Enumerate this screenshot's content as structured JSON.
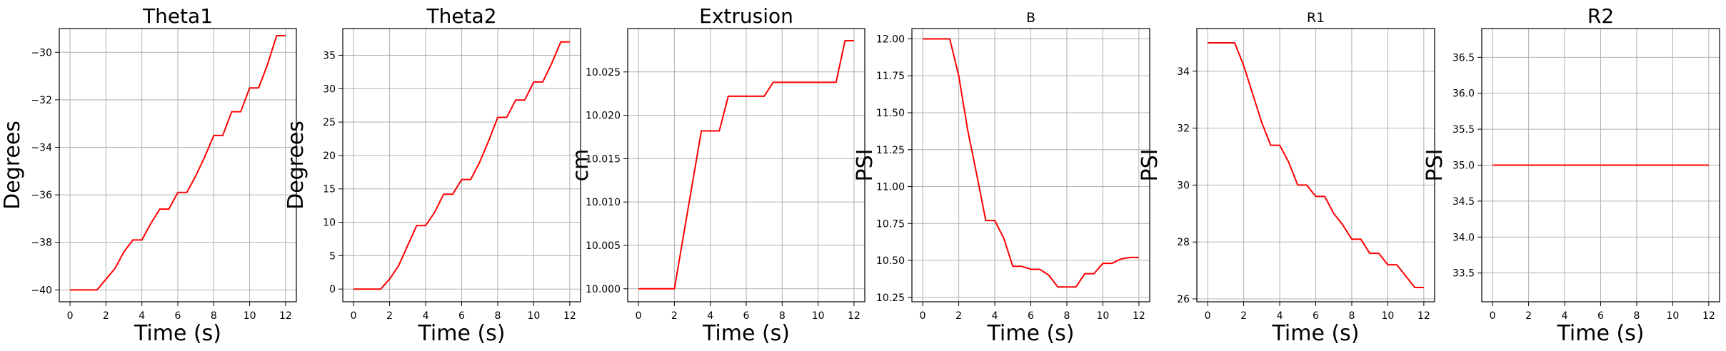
{
  "colors": {
    "series": "#ff0000",
    "grid": "#b0b0b0",
    "frame": "#000000",
    "background": "#ffffff"
  },
  "chart_data": [
    {
      "type": "line",
      "title": "Theta1",
      "title_style": "large",
      "xlabel": "Time (s)",
      "ylabel": "Degrees",
      "xlim": [
        -0.6,
        12.6
      ],
      "ylim": [
        -40.5,
        -29.0
      ],
      "xticks": [
        0,
        2,
        4,
        6,
        8,
        10,
        12
      ],
      "xtick_labels": [
        "0",
        "2",
        "4",
        "6",
        "8",
        "10",
        "12"
      ],
      "yticks": [
        -40,
        -38,
        -36,
        -34,
        -32,
        -30
      ],
      "ytick_labels": [
        "−40",
        "−38",
        "−36",
        "−34",
        "−32",
        "−30"
      ],
      "grid": true,
      "series": [
        {
          "color": "#ff0000",
          "x": [
            0,
            1.5,
            2.5,
            3.0,
            3.5,
            4.0,
            4.5,
            5.0,
            5.5,
            6.0,
            6.5,
            7.0,
            7.5,
            8.0,
            8.5,
            9.0,
            9.5,
            10.0,
            10.5,
            11.0,
            11.5,
            12.0
          ],
          "y": [
            -40,
            -40,
            -39.1,
            -38.4,
            -37.9,
            -37.9,
            -37.2,
            -36.6,
            -36.6,
            -35.9,
            -35.9,
            -35.2,
            -34.4,
            -33.5,
            -33.5,
            -32.5,
            -32.5,
            -31.5,
            -31.5,
            -30.5,
            -29.3,
            -29.3
          ]
        }
      ]
    },
    {
      "type": "line",
      "title": "Theta2",
      "title_style": "large",
      "xlabel": "Time (s)",
      "ylabel": "Degrees",
      "xlim": [
        -0.6,
        12.6
      ],
      "ylim": [
        -1.9,
        39.0
      ],
      "xticks": [
        0,
        2,
        4,
        6,
        8,
        10,
        12
      ],
      "xtick_labels": [
        "0",
        "2",
        "4",
        "6",
        "8",
        "10",
        "12"
      ],
      "yticks": [
        0,
        5,
        10,
        15,
        20,
        25,
        30,
        35
      ],
      "ytick_labels": [
        "0",
        "5",
        "10",
        "15",
        "20",
        "25",
        "30",
        "35"
      ],
      "grid": true,
      "series": [
        {
          "color": "#ff0000",
          "x": [
            0,
            1.5,
            2.0,
            2.5,
            3.0,
            3.5,
            4.0,
            4.5,
            5.0,
            5.5,
            6.0,
            6.5,
            7.0,
            7.5,
            8.0,
            8.5,
            9.0,
            9.5,
            10.0,
            10.5,
            11.0,
            11.5,
            12.0
          ],
          "y": [
            0,
            0,
            1.5,
            3.5,
            6.5,
            9.5,
            9.5,
            11.5,
            14.2,
            14.2,
            16.4,
            16.4,
            19.0,
            22.2,
            25.7,
            25.7,
            28.3,
            28.3,
            31.0,
            31.0,
            33.8,
            37.0,
            37.0
          ]
        }
      ]
    },
    {
      "type": "line",
      "title": "Extrusion",
      "title_style": "large",
      "xlabel": "Time (s)",
      "ylabel": "cm",
      "xlim": [
        -0.6,
        12.6
      ],
      "ylim": [
        9.9985,
        10.03
      ],
      "xticks": [
        0,
        2,
        4,
        6,
        8,
        10,
        12
      ],
      "xtick_labels": [
        "0",
        "2",
        "4",
        "6",
        "8",
        "10",
        "12"
      ],
      "yticks": [
        10.0,
        10.005,
        10.01,
        10.015,
        10.02,
        10.025
      ],
      "ytick_labels": [
        "10.000",
        "10.005",
        "10.010",
        "10.015",
        "10.020",
        "10.025"
      ],
      "grid": true,
      "series": [
        {
          "color": "#ff0000",
          "x": [
            0,
            2.0,
            3.5,
            4.0,
            4.5,
            5.0,
            5.5,
            6.0,
            6.5,
            7.0,
            7.5,
            11.0,
            11.5,
            12.0
          ],
          "y": [
            10.0,
            10.0,
            10.0182,
            10.0182,
            10.0182,
            10.0222,
            10.0222,
            10.0222,
            10.0222,
            10.0222,
            10.0238,
            10.0238,
            10.0286,
            10.0286
          ]
        }
      ]
    },
    {
      "type": "line",
      "title": "B",
      "title_style": "small",
      "xlabel": "Time (s)",
      "ylabel": "PSI",
      "xlim": [
        -0.6,
        12.6
      ],
      "ylim": [
        10.22,
        12.07
      ],
      "xticks": [
        0,
        2,
        4,
        6,
        8,
        10,
        12
      ],
      "xtick_labels": [
        "0",
        "2",
        "4",
        "6",
        "8",
        "10",
        "12"
      ],
      "yticks": [
        10.25,
        10.5,
        10.75,
        11.0,
        11.25,
        11.5,
        11.75,
        12.0
      ],
      "ytick_labels": [
        "10.25",
        "10.50",
        "10.75",
        "11.00",
        "11.25",
        "11.50",
        "11.75",
        "12.00"
      ],
      "grid": true,
      "series": [
        {
          "color": "#ff0000",
          "x": [
            0,
            1.5,
            2.0,
            2.5,
            3.0,
            3.5,
            4.0,
            4.5,
            5.0,
            5.5,
            6.0,
            6.5,
            7.0,
            7.5,
            8.0,
            8.5,
            9.0,
            9.5,
            10.0,
            10.5,
            11.0,
            11.5,
            12.0
          ],
          "y": [
            12.0,
            12.0,
            11.75,
            11.38,
            11.08,
            10.77,
            10.77,
            10.65,
            10.46,
            10.46,
            10.44,
            10.44,
            10.4,
            10.32,
            10.32,
            10.32,
            10.41,
            10.41,
            10.48,
            10.48,
            10.51,
            10.52,
            10.52
          ]
        }
      ]
    },
    {
      "type": "line",
      "title": "R1",
      "title_style": "small",
      "xlabel": "Time (s)",
      "ylabel": "PSI",
      "xlim": [
        -0.6,
        12.6
      ],
      "ylim": [
        25.9,
        35.5
      ],
      "xticks": [
        0,
        2,
        4,
        6,
        8,
        10,
        12
      ],
      "xtick_labels": [
        "0",
        "2",
        "4",
        "6",
        "8",
        "10",
        "12"
      ],
      "yticks": [
        26,
        28,
        30,
        32,
        34
      ],
      "ytick_labels": [
        "26",
        "28",
        "30",
        "32",
        "34"
      ],
      "grid": true,
      "series": [
        {
          "color": "#ff0000",
          "x": [
            0,
            1.5,
            2.0,
            2.5,
            3.0,
            3.5,
            4.0,
            4.5,
            5.0,
            5.5,
            6.0,
            6.5,
            7.0,
            7.5,
            8.0,
            8.5,
            9.0,
            9.5,
            10.0,
            10.5,
            11.0,
            11.5,
            12.0
          ],
          "y": [
            35.0,
            35.0,
            34.2,
            33.2,
            32.2,
            31.4,
            31.4,
            30.8,
            30.0,
            30.0,
            29.6,
            29.6,
            29.0,
            28.6,
            28.1,
            28.1,
            27.6,
            27.6,
            27.2,
            27.2,
            26.8,
            26.4,
            26.4
          ]
        }
      ]
    },
    {
      "type": "line",
      "title": "R2",
      "title_style": "large",
      "xlabel": "Time (s)",
      "ylabel": "PSI",
      "xlim": [
        -0.6,
        12.6
      ],
      "ylim": [
        33.1,
        36.9
      ],
      "xticks": [
        0,
        2,
        4,
        6,
        8,
        10,
        12
      ],
      "xtick_labels": [
        "0",
        "2",
        "4",
        "6",
        "8",
        "10",
        "12"
      ],
      "yticks": [
        33.5,
        34.0,
        34.5,
        35.0,
        35.5,
        36.0,
        36.5
      ],
      "ytick_labels": [
        "33.5",
        "34.0",
        "34.5",
        "35.0",
        "35.5",
        "36.0",
        "36.5"
      ],
      "grid": true,
      "series": [
        {
          "color": "#ff0000",
          "x": [
            0,
            12.0
          ],
          "y": [
            35.0,
            35.0
          ]
        }
      ]
    }
  ]
}
